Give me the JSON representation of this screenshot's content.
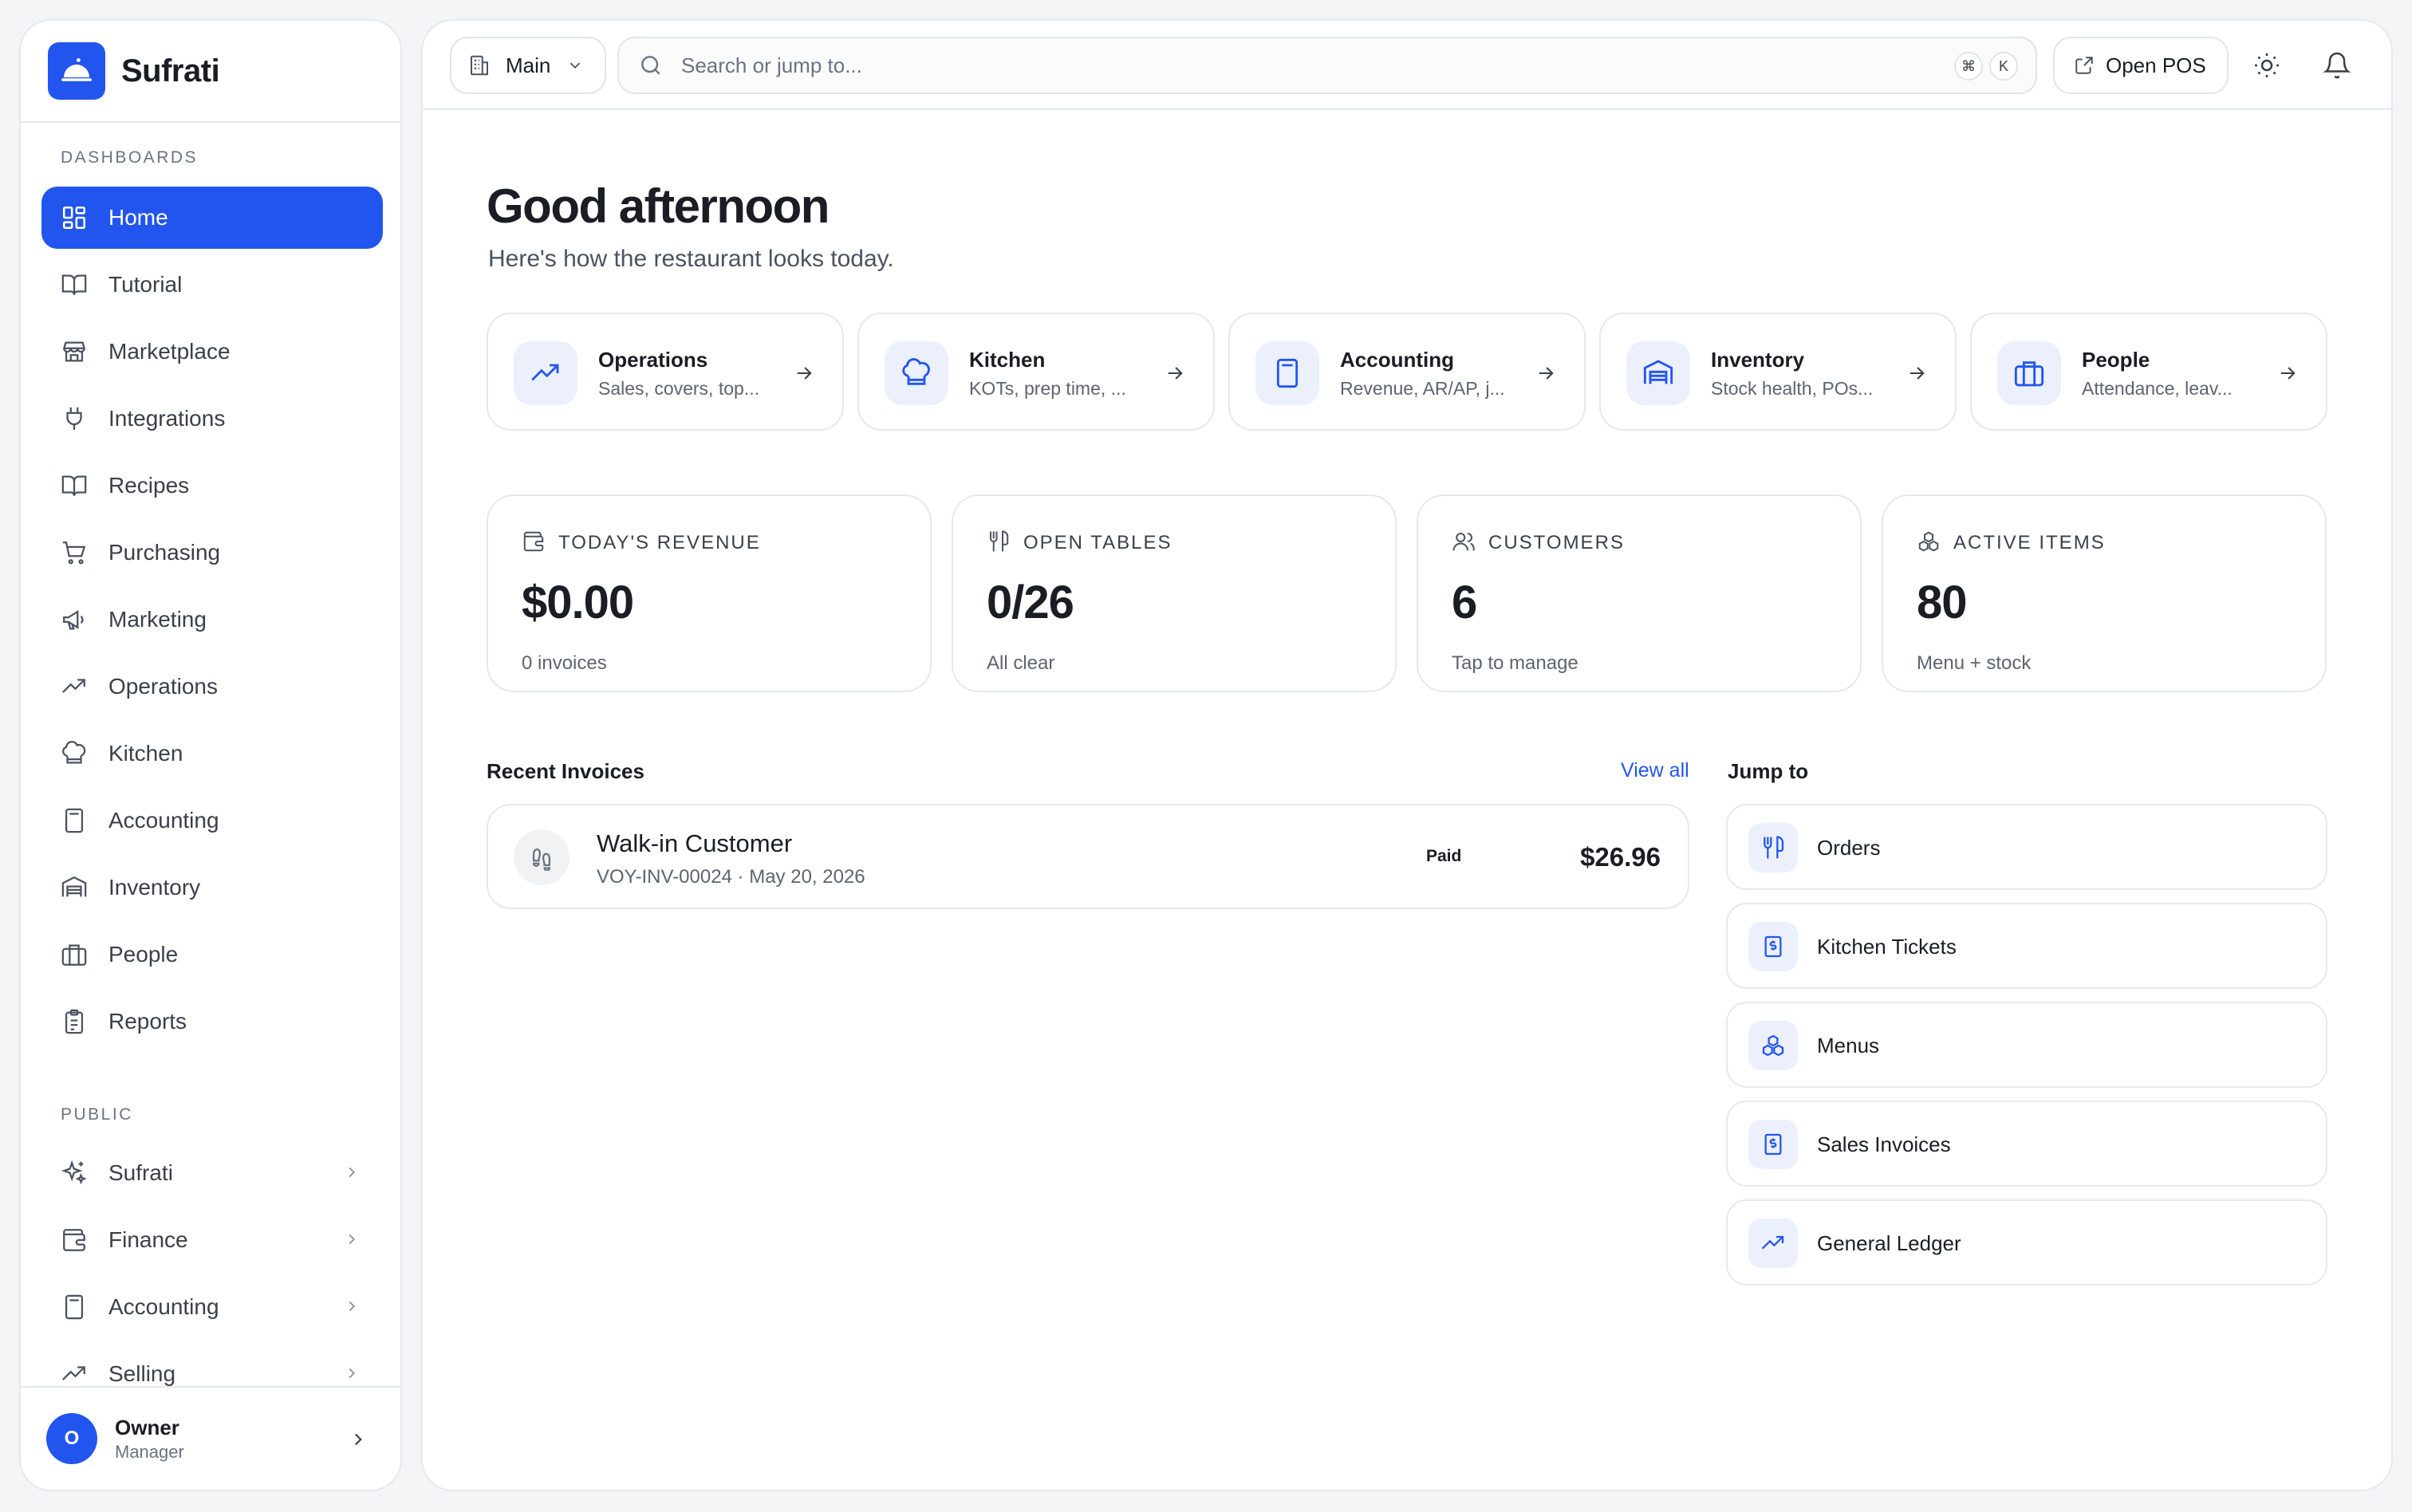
{
  "brand": {
    "name": "Sufrati",
    "logo_icon": "cloche-icon",
    "accent": "#2255ee"
  },
  "sidebar": {
    "sections": [
      {
        "label": "DASHBOARDS"
      },
      {
        "label": "PUBLIC"
      }
    ],
    "items": [
      {
        "label": "Home",
        "icon": "dashboard-grid-icon",
        "active": true
      },
      {
        "label": "Tutorial",
        "icon": "book-icon"
      },
      {
        "label": "Marketplace",
        "icon": "store-icon"
      },
      {
        "label": "Integrations",
        "icon": "plug-icon"
      },
      {
        "label": "Recipes",
        "icon": "book-open-icon"
      },
      {
        "label": "Purchasing",
        "icon": "cart-icon"
      },
      {
        "label": "Marketing",
        "icon": "megaphone-icon"
      },
      {
        "label": "Operations",
        "icon": "trending-up-icon"
      },
      {
        "label": "Kitchen",
        "icon": "chef-hat-icon"
      },
      {
        "label": "Accounting",
        "icon": "calculator-icon"
      },
      {
        "label": "Inventory",
        "icon": "warehouse-icon"
      },
      {
        "label": "People",
        "icon": "briefcase-icon"
      },
      {
        "label": "Reports",
        "icon": "clipboard-icon"
      }
    ],
    "public_items": [
      {
        "label": "Sufrati",
        "icon": "sparkles-icon"
      },
      {
        "label": "Finance",
        "icon": "wallet-icon"
      },
      {
        "label": "Accounting",
        "icon": "calculator-icon"
      },
      {
        "label": "Selling",
        "icon": "trending-up-icon"
      }
    ],
    "user": {
      "initial": "O",
      "name": "Owner",
      "role": "Manager"
    }
  },
  "topbar": {
    "branch": "Main",
    "search_placeholder": "Search or jump to...",
    "shortcut_keys": [
      "⌘",
      "K"
    ],
    "open_pos_label": "Open POS"
  },
  "main": {
    "greeting": "Good afternoon",
    "subgreeting": "Here's how the restaurant looks today.",
    "shortcuts": [
      {
        "title": "Operations",
        "subtitle": "Sales, covers, top...",
        "icon": "trending-up-icon"
      },
      {
        "title": "Kitchen",
        "subtitle": "KOTs, prep time, ...",
        "icon": "chef-hat-icon"
      },
      {
        "title": "Accounting",
        "subtitle": "Revenue, AR/AP, j...",
        "icon": "calculator-icon"
      },
      {
        "title": "Inventory",
        "subtitle": "Stock health, POs...",
        "icon": "warehouse-icon"
      },
      {
        "title": "People",
        "subtitle": "Attendance, leav...",
        "icon": "briefcase-icon"
      }
    ],
    "stats": [
      {
        "label": "TODAY'S REVENUE",
        "value": "$0.00",
        "sub": "0 invoices",
        "icon": "wallet-icon"
      },
      {
        "label": "OPEN TABLES",
        "value": "0/26",
        "sub": "All clear",
        "icon": "utensils-icon"
      },
      {
        "label": "CUSTOMERS",
        "value": "6",
        "sub": "Tap to manage",
        "icon": "users-icon"
      },
      {
        "label": "ACTIVE ITEMS",
        "value": "80",
        "sub": "Menu + stock",
        "icon": "boxes-icon"
      }
    ],
    "recent_invoices": {
      "title": "Recent Invoices",
      "view_all": "View all",
      "rows": [
        {
          "customer": "Walk-in Customer",
          "meta": "VOY-INV-00024 · May 20, 2026",
          "status": "Paid",
          "amount": "$26.96"
        }
      ]
    },
    "jump_to": {
      "title": "Jump to",
      "items": [
        {
          "label": "Orders",
          "icon": "utensils-icon"
        },
        {
          "label": "Kitchen Tickets",
          "icon": "receipt-icon"
        },
        {
          "label": "Menus",
          "icon": "boxes-icon"
        },
        {
          "label": "Sales Invoices",
          "icon": "receipt-icon"
        },
        {
          "label": "General Ledger",
          "icon": "trending-up-icon"
        }
      ]
    }
  }
}
